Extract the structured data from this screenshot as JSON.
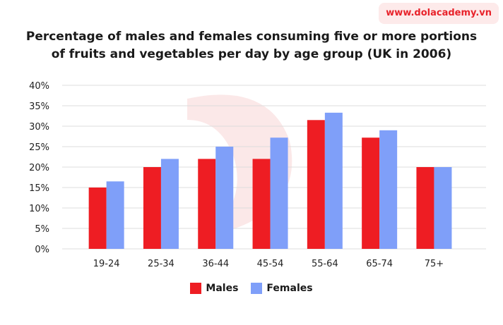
{
  "brand": {
    "text": "www.dolacademy.vn"
  },
  "chart_data": {
    "type": "bar",
    "title_lines": [
      "Percentage of males and females consuming five or more portions",
      "of fruits and vegetables per day by age group (UK in 2006)"
    ],
    "categories": [
      "19-24",
      "25-34",
      "36-44",
      "45-54",
      "55-64",
      "65-74",
      "75+"
    ],
    "series": [
      {
        "name": "Males",
        "color": "#ee1d23",
        "values": [
          15,
          20,
          22,
          22,
          31.5,
          27.2,
          20
        ]
      },
      {
        "name": "Females",
        "color": "#7f9ff9",
        "values": [
          16.5,
          22,
          25,
          27.2,
          33.3,
          29,
          20
        ]
      }
    ],
    "ylim": [
      0,
      40
    ],
    "yticks": [
      0,
      5,
      10,
      15,
      20,
      25,
      30,
      35,
      40
    ],
    "ytick_labels": [
      "0%",
      "5%",
      "10%",
      "15%",
      "20%",
      "25%",
      "30%",
      "35%",
      "40%"
    ],
    "grid": true,
    "legend_position": "bottom"
  }
}
